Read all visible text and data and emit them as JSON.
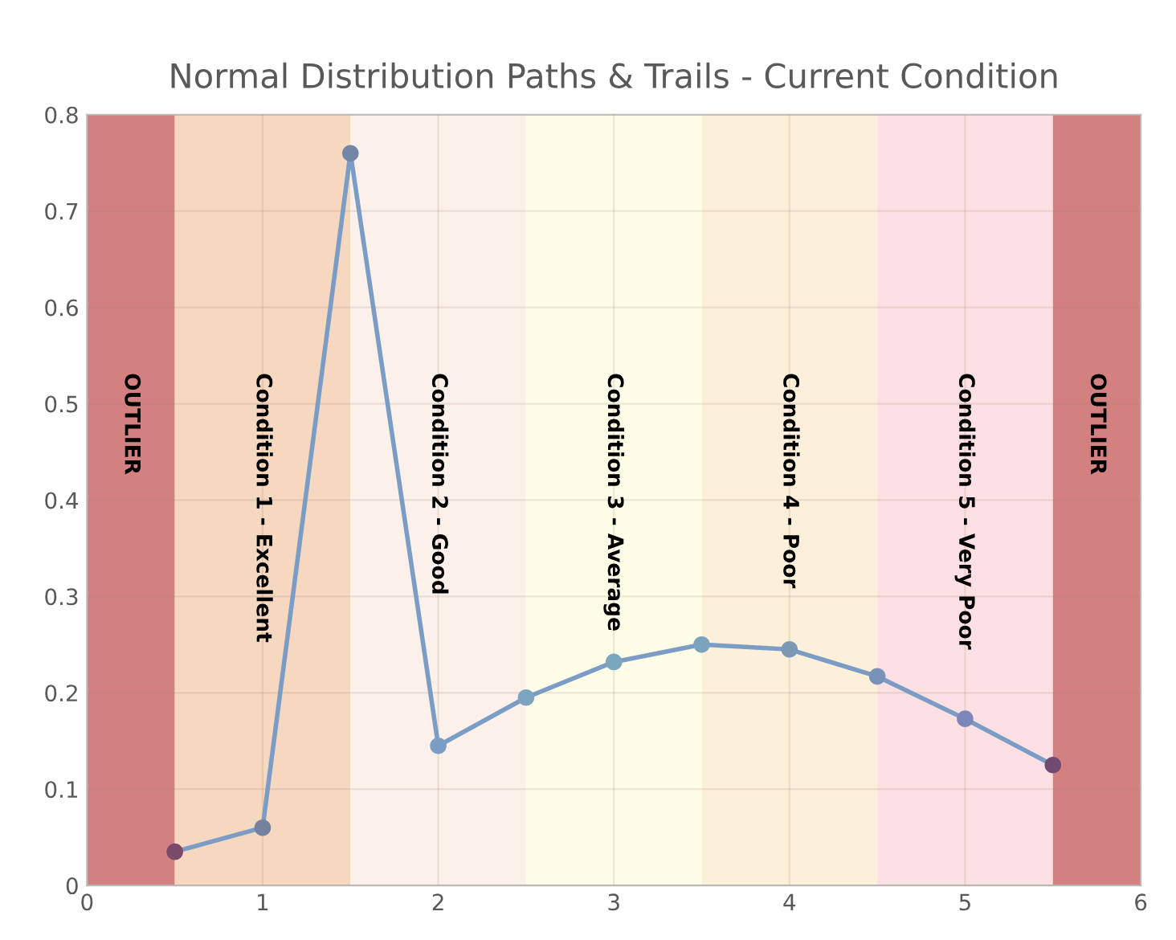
{
  "chart_data": {
    "type": "line",
    "title": "Normal Distribution Paths & Trails - Current Condition",
    "x": [
      0.5,
      1,
      1.5,
      2,
      2.5,
      3,
      3.5,
      4,
      4.5,
      5,
      5.5
    ],
    "series": [
      {
        "color": "#7b9cc4",
        "values": [
          0.035,
          0.06,
          0.76,
          0.145,
          0.195,
          0.232,
          0.25,
          0.245,
          0.217,
          0.173,
          0.125
        ],
        "colors": [
          "#7a4a6a",
          "#7482a0",
          "#7486a8",
          "#7b9cc4",
          "#7ca4c0",
          "#7ba6c0",
          "#7ba4bc",
          "#7b98b4",
          "#7b92b8",
          "#7c86b8",
          "#6e4a70"
        ]
      }
    ],
    "marker": "circle",
    "line_style": "solid",
    "grid": true,
    "xlim": [
      0,
      6
    ],
    "ylim": [
      0,
      0.8
    ],
    "xticks": [
      0,
      1,
      2,
      3,
      4,
      5,
      6
    ],
    "yticks": [
      0,
      0.1,
      0.2,
      0.3,
      0.4,
      0.5,
      0.6,
      0.7,
      0.8
    ],
    "bands": [
      {
        "axis": "x",
        "from": 0,
        "to": 0.5,
        "label": "OUTLIER",
        "color": "#d38081"
      },
      {
        "axis": "x",
        "from": 0.5,
        "to": 1.5,
        "label": "Condition 1 - Excellent",
        "color": "#f6d8c0"
      },
      {
        "axis": "x",
        "from": 1.5,
        "to": 2.5,
        "label": "Condition 2 - Good",
        "color": "#fcf1ea"
      },
      {
        "axis": "x",
        "from": 2.5,
        "to": 3.5,
        "label": "Condition 3 - Average",
        "color": "#fefee8"
      },
      {
        "axis": "x",
        "from": 3.5,
        "to": 4.5,
        "label": "Condition 4 - Poor",
        "color": "#fdf0da"
      },
      {
        "axis": "x",
        "from": 4.5,
        "to": 5.5,
        "label": "Condition 5 - Very Poor",
        "color": "#fde0e3"
      },
      {
        "axis": "x",
        "from": 5.5,
        "to": 6,
        "label": "OUTLIER",
        "color": "#d38081"
      }
    ]
  }
}
